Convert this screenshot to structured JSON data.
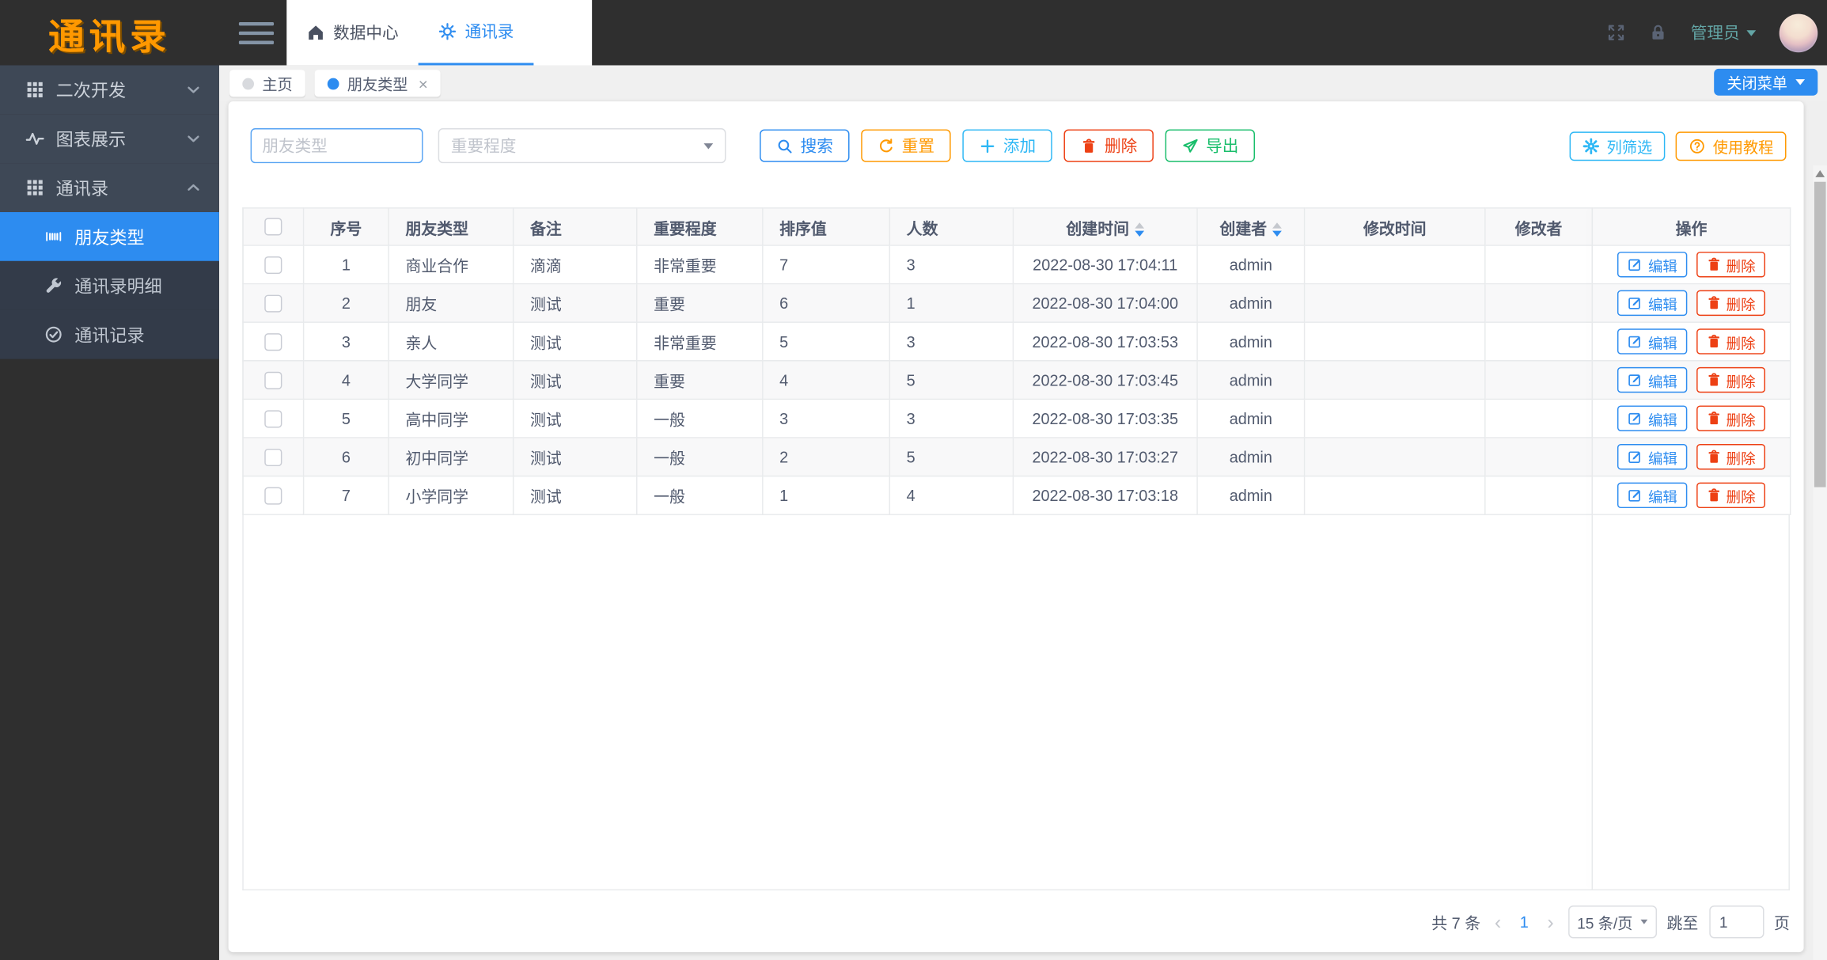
{
  "header": {
    "logo_text": "通讯录",
    "nav": [
      {
        "label": "数据中心",
        "icon": "home-icon",
        "active": false
      },
      {
        "label": "通讯录",
        "icon": "bulb-icon",
        "active": true
      }
    ],
    "user_name": "管理员"
  },
  "sidebar": {
    "items": [
      {
        "label": "二次开发",
        "icon": "apps-grid-icon",
        "expanded": false
      },
      {
        "label": "图表展示",
        "icon": "pulse-icon",
        "expanded": false
      },
      {
        "label": "通讯录",
        "icon": "apps-grid-icon",
        "expanded": true,
        "children": [
          {
            "label": "朋友类型",
            "icon": "barcode-icon",
            "active": true
          },
          {
            "label": "通讯录明细",
            "icon": "wrench-icon",
            "active": false
          },
          {
            "label": "通讯记录",
            "icon": "check-circle-icon",
            "active": false
          }
        ]
      }
    ]
  },
  "tabbar": {
    "tabs": [
      {
        "label": "主页",
        "active": false,
        "closable": false
      },
      {
        "label": "朋友类型",
        "active": true,
        "closable": true
      }
    ],
    "close_menu_label": "关闭菜单"
  },
  "filters": {
    "type_input": {
      "placeholder": "朋友类型",
      "value": ""
    },
    "importance_select": {
      "placeholder": "重要程度",
      "value": ""
    },
    "buttons": [
      {
        "name": "search-button",
        "label": "搜索",
        "icon": "search-icon",
        "color": "#2d8cf0"
      },
      {
        "name": "reset-button",
        "label": "重置",
        "icon": "refresh-icon",
        "color": "#ff9900"
      },
      {
        "name": "add-button",
        "label": "添加",
        "icon": "plus-icon",
        "color": "#2db7f5"
      },
      {
        "name": "delete-button",
        "label": "删除",
        "icon": "trash-icon",
        "color": "#ed4014"
      },
      {
        "name": "export-button",
        "label": "导出",
        "icon": "send-icon",
        "color": "#19be6b"
      }
    ],
    "right_buttons": [
      {
        "name": "column-filter-button",
        "label": "列筛选",
        "icon": "gear-icon",
        "color": "#2db7f5"
      },
      {
        "name": "tutorial-button",
        "label": "使用教程",
        "icon": "question-icon",
        "color": "#ff9900"
      }
    ]
  },
  "table": {
    "columns": [
      {
        "key": "checkbox",
        "label": "",
        "type": "checkbox"
      },
      {
        "key": "index",
        "label": "序号"
      },
      {
        "key": "type",
        "label": "朋友类型"
      },
      {
        "key": "remark",
        "label": "备注"
      },
      {
        "key": "importance",
        "label": "重要程度"
      },
      {
        "key": "sort",
        "label": "排序值"
      },
      {
        "key": "count",
        "label": "人数"
      },
      {
        "key": "created",
        "label": "创建时间",
        "sortable": true
      },
      {
        "key": "creator",
        "label": "创建者",
        "sortable": true
      },
      {
        "key": "modified",
        "label": "修改时间"
      },
      {
        "key": "modifier",
        "label": "修改者"
      },
      {
        "key": "actions",
        "label": "操作"
      }
    ],
    "action_labels": {
      "edit": "编辑",
      "delete": "删除"
    },
    "rows": [
      {
        "index": "1",
        "type": "商业合作",
        "remark": "滴滴",
        "importance": "非常重要",
        "sort": "7",
        "count": "3",
        "created": "2022-08-30 17:04:11",
        "creator": "admin",
        "modified": "",
        "modifier": ""
      },
      {
        "index": "2",
        "type": "朋友",
        "remark": "测试",
        "importance": "重要",
        "sort": "6",
        "count": "1",
        "created": "2022-08-30 17:04:00",
        "creator": "admin",
        "modified": "",
        "modifier": ""
      },
      {
        "index": "3",
        "type": "亲人",
        "remark": "测试",
        "importance": "非常重要",
        "sort": "5",
        "count": "3",
        "created": "2022-08-30 17:03:53",
        "creator": "admin",
        "modified": "",
        "modifier": ""
      },
      {
        "index": "4",
        "type": "大学同学",
        "remark": "测试",
        "importance": "重要",
        "sort": "4",
        "count": "5",
        "created": "2022-08-30 17:03:45",
        "creator": "admin",
        "modified": "",
        "modifier": ""
      },
      {
        "index": "5",
        "type": "高中同学",
        "remark": "测试",
        "importance": "一般",
        "sort": "3",
        "count": "3",
        "created": "2022-08-30 17:03:35",
        "creator": "admin",
        "modified": "",
        "modifier": ""
      },
      {
        "index": "6",
        "type": "初中同学",
        "remark": "测试",
        "importance": "一般",
        "sort": "2",
        "count": "5",
        "created": "2022-08-30 17:03:27",
        "creator": "admin",
        "modified": "",
        "modifier": ""
      },
      {
        "index": "7",
        "type": "小学同学",
        "remark": "测试",
        "importance": "一般",
        "sort": "1",
        "count": "4",
        "created": "2022-08-30 17:03:18",
        "creator": "admin",
        "modified": "",
        "modifier": ""
      }
    ]
  },
  "pagination": {
    "total_label": "共 7 条",
    "prev_label": "‹",
    "current_page": "1",
    "next_label": "›",
    "page_size_label": "15 条/页",
    "jump_label": "跳至",
    "jump_value": "1",
    "jump_suffix": "页"
  },
  "colors": {
    "primary": "#2d8cf0",
    "info": "#2db7f5",
    "success": "#19be6b",
    "warning": "#ff9900",
    "error": "#ed4014",
    "logo": "#ff9800",
    "sidebar_bg": "#3e4856",
    "submenu_bg": "#333b49",
    "header_bg": "#2f2f2f",
    "table_border": "#e8eaec",
    "table_header_bg": "#f8f8f9"
  }
}
